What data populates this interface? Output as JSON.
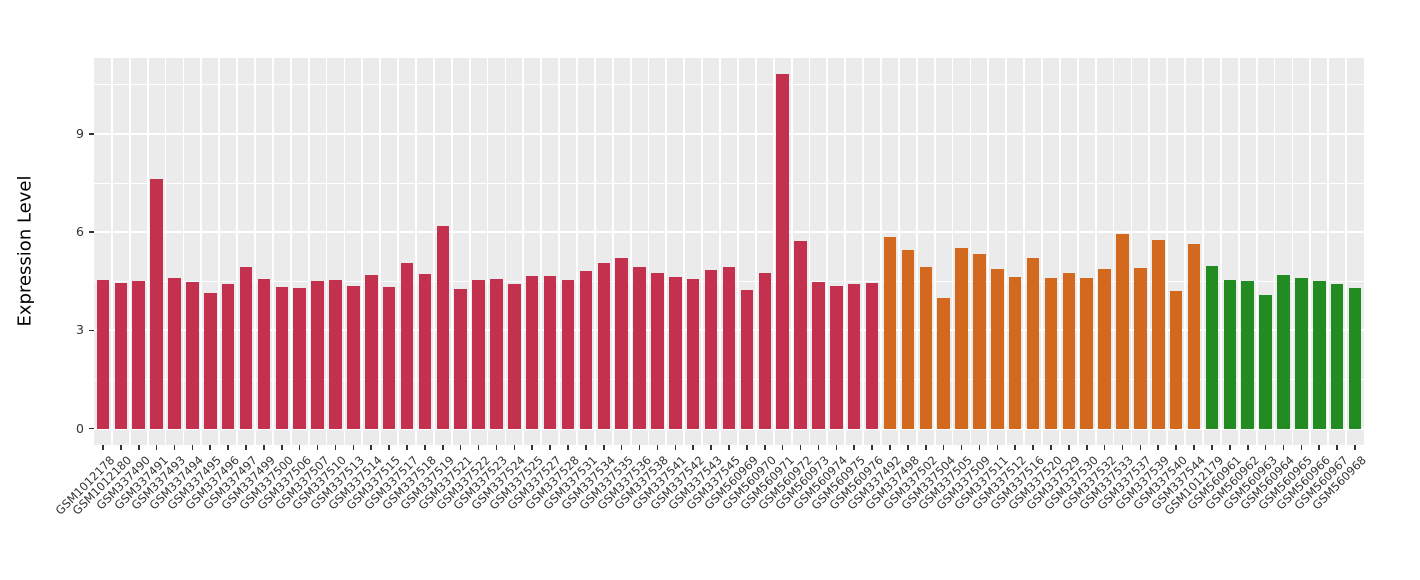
{
  "chart_data": {
    "type": "bar",
    "title": "",
    "xlabel": "",
    "ylabel": "Expression Level",
    "ylim": [
      -0.5,
      11.32
    ],
    "yticks": [
      0,
      3,
      6,
      9
    ],
    "ytick_labels": [
      "0",
      "3",
      "6",
      "9"
    ],
    "yticks_minor": [
      1.5,
      4.5,
      7.5,
      10.5
    ],
    "grid": "on",
    "legend": "none",
    "panel_background": "#EBEBEB",
    "grid_color": "#FFFFFF",
    "axis_text_color": "#333333",
    "axis_title_color": "#000000",
    "x_label_angle_deg": 45,
    "categories": [
      "GSM1012178",
      "GSM1012180",
      "GSM337490",
      "GSM337491",
      "GSM337493",
      "GSM337494",
      "GSM337495",
      "GSM337496",
      "GSM337497",
      "GSM337499",
      "GSM337500",
      "GSM337506",
      "GSM337507",
      "GSM337510",
      "GSM337513",
      "GSM337514",
      "GSM337515",
      "GSM337517",
      "GSM337518",
      "GSM337519",
      "GSM337521",
      "GSM337522",
      "GSM337523",
      "GSM337524",
      "GSM337525",
      "GSM337527",
      "GSM337528",
      "GSM337531",
      "GSM337534",
      "GSM337535",
      "GSM337536",
      "GSM337538",
      "GSM337541",
      "GSM337542",
      "GSM337543",
      "GSM337545",
      "GSM560969",
      "GSM560970",
      "GSM560971",
      "GSM560972",
      "GSM560973",
      "GSM560974",
      "GSM560975",
      "GSM560976",
      "GSM337492",
      "GSM337498",
      "GSM337502",
      "GSM337504",
      "GSM337505",
      "GSM337509",
      "GSM337511",
      "GSM337512",
      "GSM337516",
      "GSM337520",
      "GSM337529",
      "GSM337530",
      "GSM337532",
      "GSM337533",
      "GSM337537",
      "GSM337539",
      "GSM337540",
      "GSM337544",
      "GSM1012179",
      "GSM560961",
      "GSM560962",
      "GSM560963",
      "GSM560964",
      "GSM560965",
      "GSM560966",
      "GSM560967",
      "GSM560968"
    ],
    "values": [
      4.53,
      4.44,
      4.51,
      7.61,
      4.61,
      4.48,
      4.14,
      4.42,
      4.93,
      4.58,
      4.34,
      4.29,
      4.5,
      4.54,
      4.37,
      4.68,
      4.33,
      5.06,
      4.72,
      6.2,
      4.25,
      4.53,
      4.57,
      4.42,
      4.66,
      4.67,
      4.53,
      4.8,
      5.06,
      5.21,
      4.94,
      4.74,
      4.63,
      4.57,
      4.85,
      4.94,
      4.24,
      4.74,
      10.84,
      5.74,
      4.48,
      4.37,
      4.41,
      4.44,
      5.85,
      5.45,
      4.94,
      4.0,
      5.53,
      5.33,
      4.89,
      4.64,
      5.22,
      4.6,
      4.74,
      4.61,
      4.87,
      5.94,
      4.91,
      5.77,
      4.19,
      5.65,
      4.97,
      4.55,
      4.52,
      4.09,
      4.7,
      4.6,
      4.52,
      4.42,
      4.31
    ],
    "bar_groups": [
      {
        "name": "group-1",
        "color": "#C3314E",
        "start": 0,
        "end": 43
      },
      {
        "name": "group-2",
        "color": "#D2691E",
        "start": 44,
        "end": 61
      },
      {
        "name": "group-3",
        "color": "#228B22",
        "start": 62,
        "end": 70
      }
    ]
  }
}
